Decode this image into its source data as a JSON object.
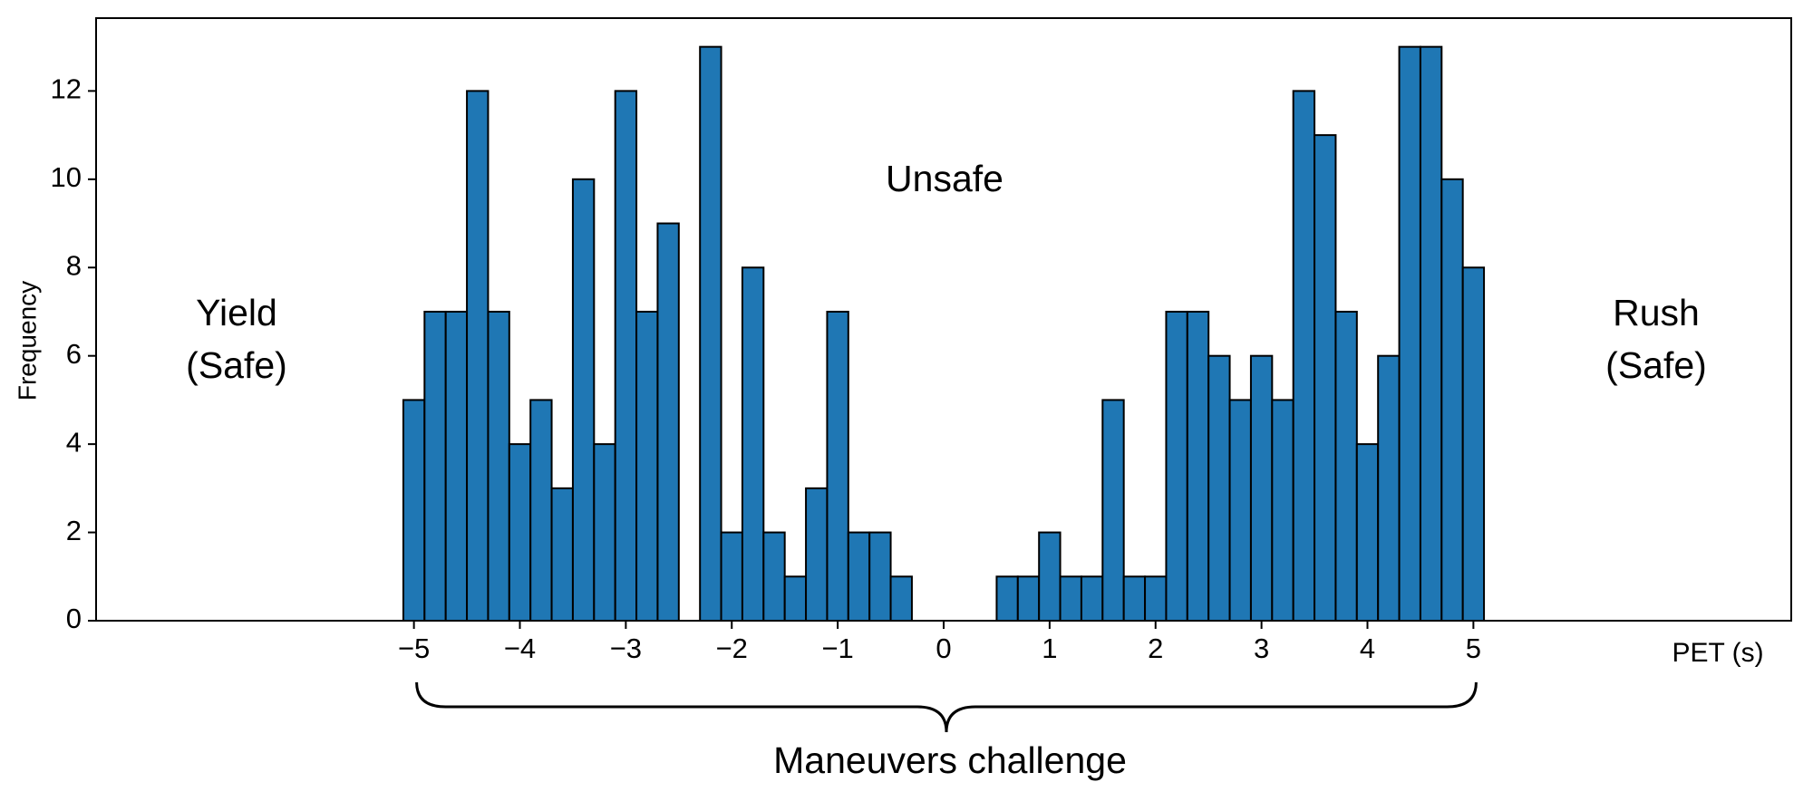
{
  "chart_data": {
    "type": "histogram",
    "x_label": "PET (s)",
    "y_label": "Frequency",
    "left_label": [
      "Yield",
      "(Safe)"
    ],
    "right_label": [
      "Rush",
      "(Safe)"
    ],
    "center_label": "Unsafe",
    "bracket_label": "Maneuvers challenge",
    "color": "#1f77b4",
    "bins": [
      -5.1,
      -4.9,
      -4.7,
      -4.5,
      -4.3,
      -4.1,
      -3.9,
      -3.7,
      -3.5,
      -3.3,
      -3.1,
      -2.9,
      -2.7,
      -2.5,
      -2.3,
      -2.1,
      -1.9,
      -1.7,
      -1.5,
      -1.3,
      -1.1,
      -0.9,
      -0.7,
      -0.5,
      -0.3,
      -0.1,
      0.1,
      0.3,
      0.5,
      0.7,
      0.9,
      1.1,
      1.3,
      1.5,
      1.7,
      1.9,
      2.1,
      2.3,
      2.5,
      2.7,
      2.9,
      3.1,
      3.3,
      3.5,
      3.7,
      3.9,
      4.1,
      4.3,
      4.5,
      4.7,
      4.9,
      5.1
    ],
    "counts": [
      5,
      7,
      7,
      12,
      7,
      4,
      5,
      3,
      10,
      4,
      12,
      7,
      9,
      0,
      13,
      2,
      8,
      2,
      1,
      3,
      7,
      2,
      2,
      1,
      0,
      0,
      0,
      0,
      1,
      1,
      2,
      1,
      1,
      5,
      1,
      1,
      7,
      7,
      6,
      5,
      6,
      5,
      12,
      11,
      7,
      4,
      6,
      13,
      13,
      10,
      8
    ],
    "xlim": [
      -8,
      8
    ],
    "ylim": [
      0,
      13.65
    ],
    "xticks": [
      {
        "value": -5,
        "label": "−5"
      },
      {
        "value": -4,
        "label": "−4"
      },
      {
        "value": -3,
        "label": "−3"
      },
      {
        "value": -2,
        "label": "−2"
      },
      {
        "value": -1,
        "label": "−1"
      },
      0,
      1,
      2,
      3,
      4,
      5
    ],
    "yticks": [
      0,
      2,
      4,
      6,
      8,
      10,
      12
    ]
  }
}
